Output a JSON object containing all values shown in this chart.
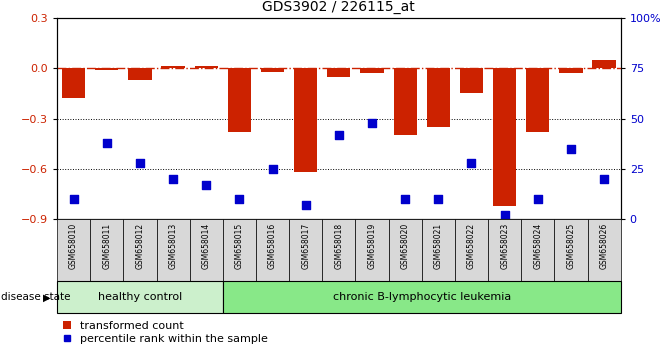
{
  "title": "GDS3902 / 226115_at",
  "samples": [
    "GSM658010",
    "GSM658011",
    "GSM658012",
    "GSM658013",
    "GSM658014",
    "GSM658015",
    "GSM658016",
    "GSM658017",
    "GSM658018",
    "GSM658019",
    "GSM658020",
    "GSM658021",
    "GSM658022",
    "GSM658023",
    "GSM658024",
    "GSM658025",
    "GSM658026"
  ],
  "red_bars": [
    -0.18,
    -0.01,
    -0.07,
    0.01,
    0.01,
    -0.38,
    -0.02,
    -0.62,
    -0.05,
    -0.03,
    -0.4,
    -0.35,
    -0.15,
    -0.82,
    -0.38,
    -0.03,
    0.05
  ],
  "blue_dots": [
    10,
    38,
    28,
    20,
    17,
    10,
    25,
    7,
    42,
    48,
    10,
    10,
    28,
    2,
    10,
    35,
    20
  ],
  "healthy_count": 5,
  "ylim_left": [
    -0.9,
    0.3
  ],
  "ylim_right": [
    0,
    100
  ],
  "yticks_left": [
    -0.9,
    -0.6,
    -0.3,
    0.0,
    0.3
  ],
  "yticks_right": [
    0,
    25,
    50,
    75,
    100
  ],
  "ytick_labels_right": [
    "0",
    "25",
    "50",
    "75",
    "100%"
  ],
  "bar_color": "#cc2200",
  "dot_color": "#0000cc",
  "chart_bg": "#ffffff",
  "healthy_bg": "#ccf0cc",
  "leukemia_bg": "#88e888",
  "xticklabel_bg": "#d8d8d8",
  "disease_state_label": "disease state",
  "healthy_label": "healthy control",
  "leukemia_label": "chronic B-lymphocytic leukemia",
  "legend_bar_label": "transformed count",
  "legend_dot_label": "percentile rank within the sample",
  "hline_color": "#cc2200",
  "grid_color": "#000000"
}
